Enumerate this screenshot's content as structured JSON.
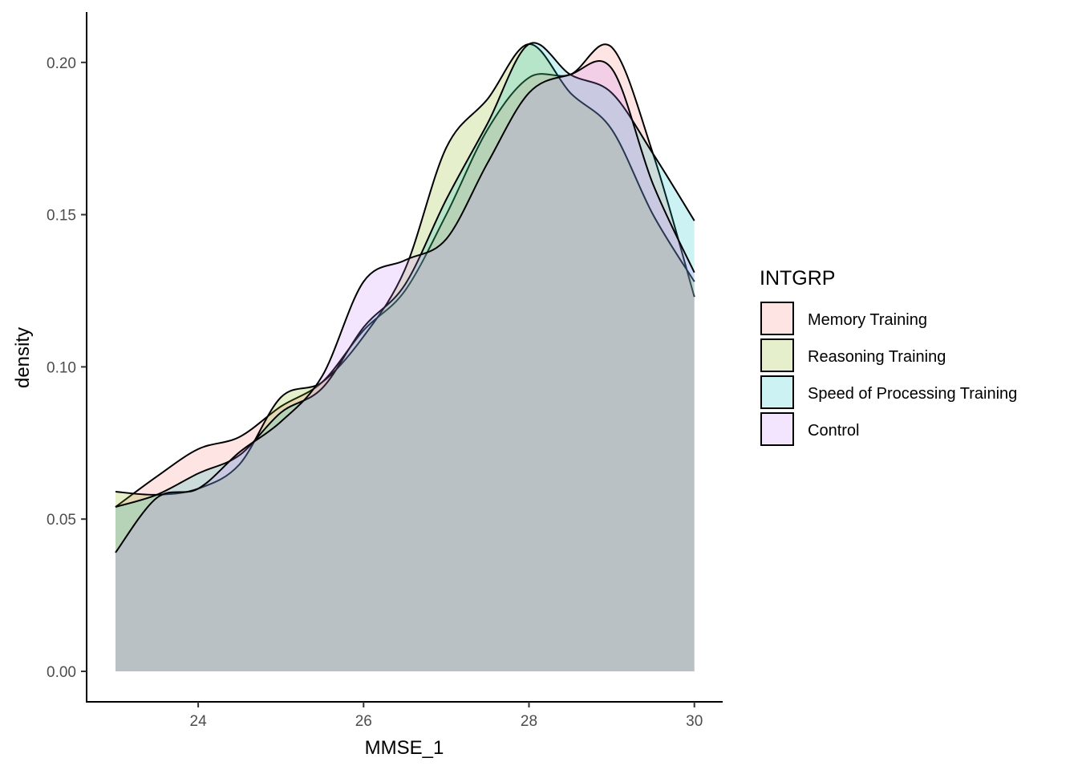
{
  "chart_data": {
    "type": "area",
    "subtype": "density",
    "xlabel": "MMSE_1",
    "ylabel": "density",
    "xlim": [
      22.7,
      30.35
    ],
    "ylim": [
      -0.01,
      0.216
    ],
    "xticks": [
      24,
      26,
      28,
      30
    ],
    "yticks": [
      0.0,
      0.05,
      0.1,
      0.15,
      0.2
    ],
    "ytick_labels": [
      "0.00",
      "0.05",
      "0.10",
      "0.15",
      "0.20"
    ],
    "grid": false,
    "legend": {
      "title": "INTGRP",
      "position": "right"
    },
    "fill_opacity": 0.2,
    "x": [
      23,
      23.5,
      24,
      24.5,
      25,
      25.5,
      26,
      26.5,
      27,
      27.5,
      28,
      28.5,
      29,
      29.5,
      30
    ],
    "series": [
      {
        "name": "Memory Training",
        "color": "#F8766D",
        "values": [
          0.054,
          0.064,
          0.073,
          0.077,
          0.087,
          0.095,
          0.112,
          0.125,
          0.15,
          0.178,
          0.195,
          0.196,
          0.205,
          0.17,
          0.123
        ]
      },
      {
        "name": "Reasoning Training",
        "color": "#7CAE00",
        "values": [
          0.059,
          0.058,
          0.06,
          0.068,
          0.09,
          0.095,
          0.11,
          0.132,
          0.172,
          0.188,
          0.206,
          0.19,
          0.178,
          0.15,
          0.128
        ]
      },
      {
        "name": "Speed of Processing Training",
        "color": "#00BFC4",
        "values": [
          0.054,
          0.058,
          0.065,
          0.071,
          0.085,
          0.093,
          0.113,
          0.127,
          0.155,
          0.18,
          0.206,
          0.196,
          0.19,
          0.17,
          0.148
        ]
      },
      {
        "name": "Control",
        "color": "#C77CFF",
        "values": [
          0.039,
          0.057,
          0.06,
          0.072,
          0.082,
          0.097,
          0.128,
          0.135,
          0.142,
          0.167,
          0.19,
          0.196,
          0.198,
          0.16,
          0.131
        ]
      }
    ]
  }
}
